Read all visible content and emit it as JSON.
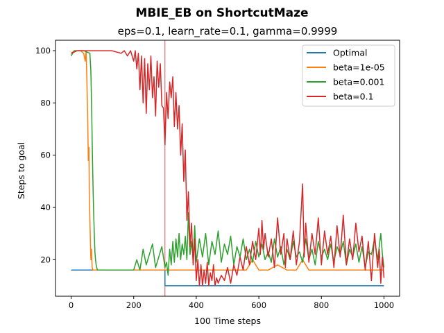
{
  "chart_data": {
    "type": "line",
    "suptitle": "MBIE_EB on ShortcutMaze",
    "title": "eps=0.1, learn_rate=0.1, gamma=0.9999",
    "xlabel": "100 Time steps",
    "ylabel": "Steps to goal",
    "xlim": [
      -50,
      1050
    ],
    "ylim": [
      6,
      104
    ],
    "xticks": [
      0,
      200,
      400,
      600,
      800,
      1000
    ],
    "yticks": [
      20,
      40,
      60,
      80,
      100
    ],
    "grid": false,
    "legend_position": "top-right",
    "annotations": [
      {
        "type": "vline",
        "x": 300,
        "color": "#d62728"
      }
    ],
    "series": [
      {
        "name": "Optimal",
        "color": "#1f77b4",
        "points": [
          [
            0,
            16
          ],
          [
            300,
            16
          ],
          [
            300,
            10
          ],
          [
            1000,
            10
          ]
        ]
      },
      {
        "name": "beta=1e-05",
        "color": "#ff7f0e",
        "points": [
          [
            0,
            99
          ],
          [
            10,
            100
          ],
          [
            30,
            100
          ],
          [
            40,
            99
          ],
          [
            45,
            96
          ],
          [
            48,
            100
          ],
          [
            50,
            90
          ],
          [
            53,
            75
          ],
          [
            55,
            58
          ],
          [
            57,
            63
          ],
          [
            58,
            45
          ],
          [
            60,
            35
          ],
          [
            62,
            25
          ],
          [
            63,
            20
          ],
          [
            65,
            24
          ],
          [
            67,
            17
          ],
          [
            70,
            16
          ],
          [
            120,
            16
          ],
          [
            160,
            16
          ],
          [
            240,
            16
          ],
          [
            300,
            16
          ],
          [
            320,
            16
          ],
          [
            380,
            16
          ],
          [
            450,
            16
          ],
          [
            520,
            16
          ],
          [
            560,
            16
          ],
          [
            580,
            20
          ],
          [
            600,
            16
          ],
          [
            630,
            16
          ],
          [
            660,
            18
          ],
          [
            690,
            16
          ],
          [
            720,
            16
          ],
          [
            740,
            20
          ],
          [
            760,
            16
          ],
          [
            800,
            16
          ],
          [
            850,
            16
          ],
          [
            900,
            16
          ],
          [
            950,
            16
          ],
          [
            1000,
            16
          ]
        ]
      },
      {
        "name": "beta=0.001",
        "color": "#2ca02c",
        "points": [
          [
            0,
            98
          ],
          [
            5,
            99
          ],
          [
            10,
            100
          ],
          [
            40,
            100
          ],
          [
            60,
            99
          ],
          [
            63,
            92
          ],
          [
            66,
            75
          ],
          [
            68,
            60
          ],
          [
            70,
            48
          ],
          [
            72,
            38
          ],
          [
            74,
            30
          ],
          [
            76,
            23
          ],
          [
            78,
            20
          ],
          [
            80,
            18
          ],
          [
            84,
            16
          ],
          [
            120,
            16
          ],
          [
            170,
            16
          ],
          [
            200,
            16
          ],
          [
            210,
            20
          ],
          [
            220,
            16
          ],
          [
            230,
            24
          ],
          [
            240,
            18
          ],
          [
            250,
            22
          ],
          [
            260,
            26
          ],
          [
            270,
            17
          ],
          [
            280,
            21
          ],
          [
            290,
            25
          ],
          [
            300,
            17
          ],
          [
            305,
            19
          ],
          [
            310,
            14
          ],
          [
            315,
            24
          ],
          [
            320,
            18
          ],
          [
            325,
            27
          ],
          [
            330,
            19
          ],
          [
            335,
            28
          ],
          [
            340,
            21
          ],
          [
            345,
            30
          ],
          [
            350,
            20
          ],
          [
            355,
            26
          ],
          [
            360,
            22
          ],
          [
            365,
            29
          ],
          [
            370,
            20
          ],
          [
            375,
            38
          ],
          [
            380,
            22
          ],
          [
            385,
            27
          ],
          [
            390,
            20
          ],
          [
            395,
            33
          ],
          [
            400,
            19
          ],
          [
            410,
            28
          ],
          [
            420,
            21
          ],
          [
            430,
            30
          ],
          [
            440,
            18
          ],
          [
            450,
            27
          ],
          [
            460,
            22
          ],
          [
            470,
            31
          ],
          [
            480,
            19
          ],
          [
            490,
            26
          ],
          [
            500,
            22
          ],
          [
            510,
            29
          ],
          [
            520,
            18
          ],
          [
            530,
            25
          ],
          [
            540,
            21
          ],
          [
            550,
            28
          ],
          [
            560,
            20
          ],
          [
            570,
            24
          ],
          [
            580,
            19
          ],
          [
            590,
            27
          ],
          [
            600,
            21
          ],
          [
            610,
            26
          ],
          [
            620,
            20
          ],
          [
            630,
            23
          ],
          [
            640,
            19
          ],
          [
            650,
            28
          ],
          [
            660,
            21
          ],
          [
            670,
            25
          ],
          [
            680,
            18
          ],
          [
            690,
            24
          ],
          [
            700,
            20
          ],
          [
            710,
            27
          ],
          [
            720,
            21
          ],
          [
            730,
            23
          ],
          [
            740,
            19
          ],
          [
            750,
            28
          ],
          [
            760,
            20
          ],
          [
            770,
            24
          ],
          [
            780,
            18
          ],
          [
            790,
            27
          ],
          [
            800,
            21
          ],
          [
            810,
            24
          ],
          [
            820,
            20
          ],
          [
            830,
            26
          ],
          [
            840,
            19
          ],
          [
            850,
            25
          ],
          [
            860,
            22
          ],
          [
            870,
            27
          ],
          [
            880,
            18
          ],
          [
            890,
            24
          ],
          [
            900,
            21
          ],
          [
            910,
            26
          ],
          [
            920,
            19
          ],
          [
            930,
            25
          ],
          [
            940,
            17
          ],
          [
            950,
            23
          ],
          [
            960,
            22
          ],
          [
            970,
            28
          ],
          [
            980,
            20
          ],
          [
            990,
            30
          ],
          [
            995,
            22
          ],
          [
            1000,
            17
          ]
        ]
      },
      {
        "name": "beta=0.1",
        "color": "#d62728",
        "points": [
          [
            0,
            99
          ],
          [
            20,
            100
          ],
          [
            80,
            100
          ],
          [
            130,
            100
          ],
          [
            160,
            99
          ],
          [
            170,
            100
          ],
          [
            180,
            98
          ],
          [
            190,
            100
          ],
          [
            200,
            96
          ],
          [
            205,
            100
          ],
          [
            210,
            93
          ],
          [
            215,
            99
          ],
          [
            220,
            85
          ],
          [
            225,
            98
          ],
          [
            230,
            80
          ],
          [
            235,
            97
          ],
          [
            240,
            76
          ],
          [
            245,
            95
          ],
          [
            250,
            85
          ],
          [
            255,
            98
          ],
          [
            260,
            82
          ],
          [
            265,
            90
          ],
          [
            270,
            75
          ],
          [
            275,
            96
          ],
          [
            280,
            86
          ],
          [
            285,
            95
          ],
          [
            290,
            79
          ],
          [
            295,
            78
          ],
          [
            300,
            64
          ],
          [
            305,
            84
          ],
          [
            310,
            74
          ],
          [
            315,
            88
          ],
          [
            320,
            82
          ],
          [
            325,
            90
          ],
          [
            330,
            71
          ],
          [
            335,
            84
          ],
          [
            340,
            70
          ],
          [
            345,
            79
          ],
          [
            350,
            60
          ],
          [
            355,
            72
          ],
          [
            360,
            50
          ],
          [
            365,
            62
          ],
          [
            370,
            35
          ],
          [
            375,
            46
          ],
          [
            380,
            25
          ],
          [
            385,
            34
          ],
          [
            390,
            18
          ],
          [
            395,
            28
          ],
          [
            400,
            12
          ],
          [
            405,
            20
          ],
          [
            410,
            10
          ],
          [
            415,
            18
          ],
          [
            420,
            10
          ],
          [
            425,
            16
          ],
          [
            430,
            11
          ],
          [
            435,
            19
          ],
          [
            440,
            10
          ],
          [
            445,
            15
          ],
          [
            450,
            12
          ],
          [
            455,
            18
          ],
          [
            460,
            10
          ],
          [
            465,
            13
          ],
          [
            470,
            11
          ],
          [
            480,
            14
          ],
          [
            490,
            12
          ],
          [
            500,
            17
          ],
          [
            510,
            11
          ],
          [
            520,
            18
          ],
          [
            530,
            14
          ],
          [
            540,
            21
          ],
          [
            550,
            16
          ],
          [
            560,
            25
          ],
          [
            570,
            18
          ],
          [
            580,
            27
          ],
          [
            590,
            20
          ],
          [
            600,
            32
          ],
          [
            605,
            22
          ],
          [
            610,
            35
          ],
          [
            615,
            24
          ],
          [
            620,
            30
          ],
          [
            630,
            21
          ],
          [
            640,
            28
          ],
          [
            650,
            17
          ],
          [
            660,
            36
          ],
          [
            670,
            22
          ],
          [
            680,
            30
          ],
          [
            685,
            17
          ],
          [
            690,
            28
          ],
          [
            700,
            20
          ],
          [
            710,
            31
          ],
          [
            720,
            18
          ],
          [
            730,
            27
          ],
          [
            740,
            49
          ],
          [
            745,
            21
          ],
          [
            750,
            34
          ],
          [
            760,
            19
          ],
          [
            770,
            30
          ],
          [
            780,
            22
          ],
          [
            790,
            36
          ],
          [
            800,
            18
          ],
          [
            810,
            31
          ],
          [
            820,
            22
          ],
          [
            830,
            29
          ],
          [
            840,
            17
          ],
          [
            850,
            33
          ],
          [
            860,
            21
          ],
          [
            870,
            37
          ],
          [
            880,
            18
          ],
          [
            890,
            28
          ],
          [
            900,
            20
          ],
          [
            910,
            34
          ],
          [
            920,
            23
          ],
          [
            930,
            29
          ],
          [
            940,
            16
          ],
          [
            950,
            27
          ],
          [
            960,
            12
          ],
          [
            970,
            30
          ],
          [
            980,
            17
          ],
          [
            985,
            24
          ],
          [
            990,
            11
          ],
          [
            995,
            21
          ],
          [
            1000,
            13
          ]
        ]
      }
    ]
  }
}
